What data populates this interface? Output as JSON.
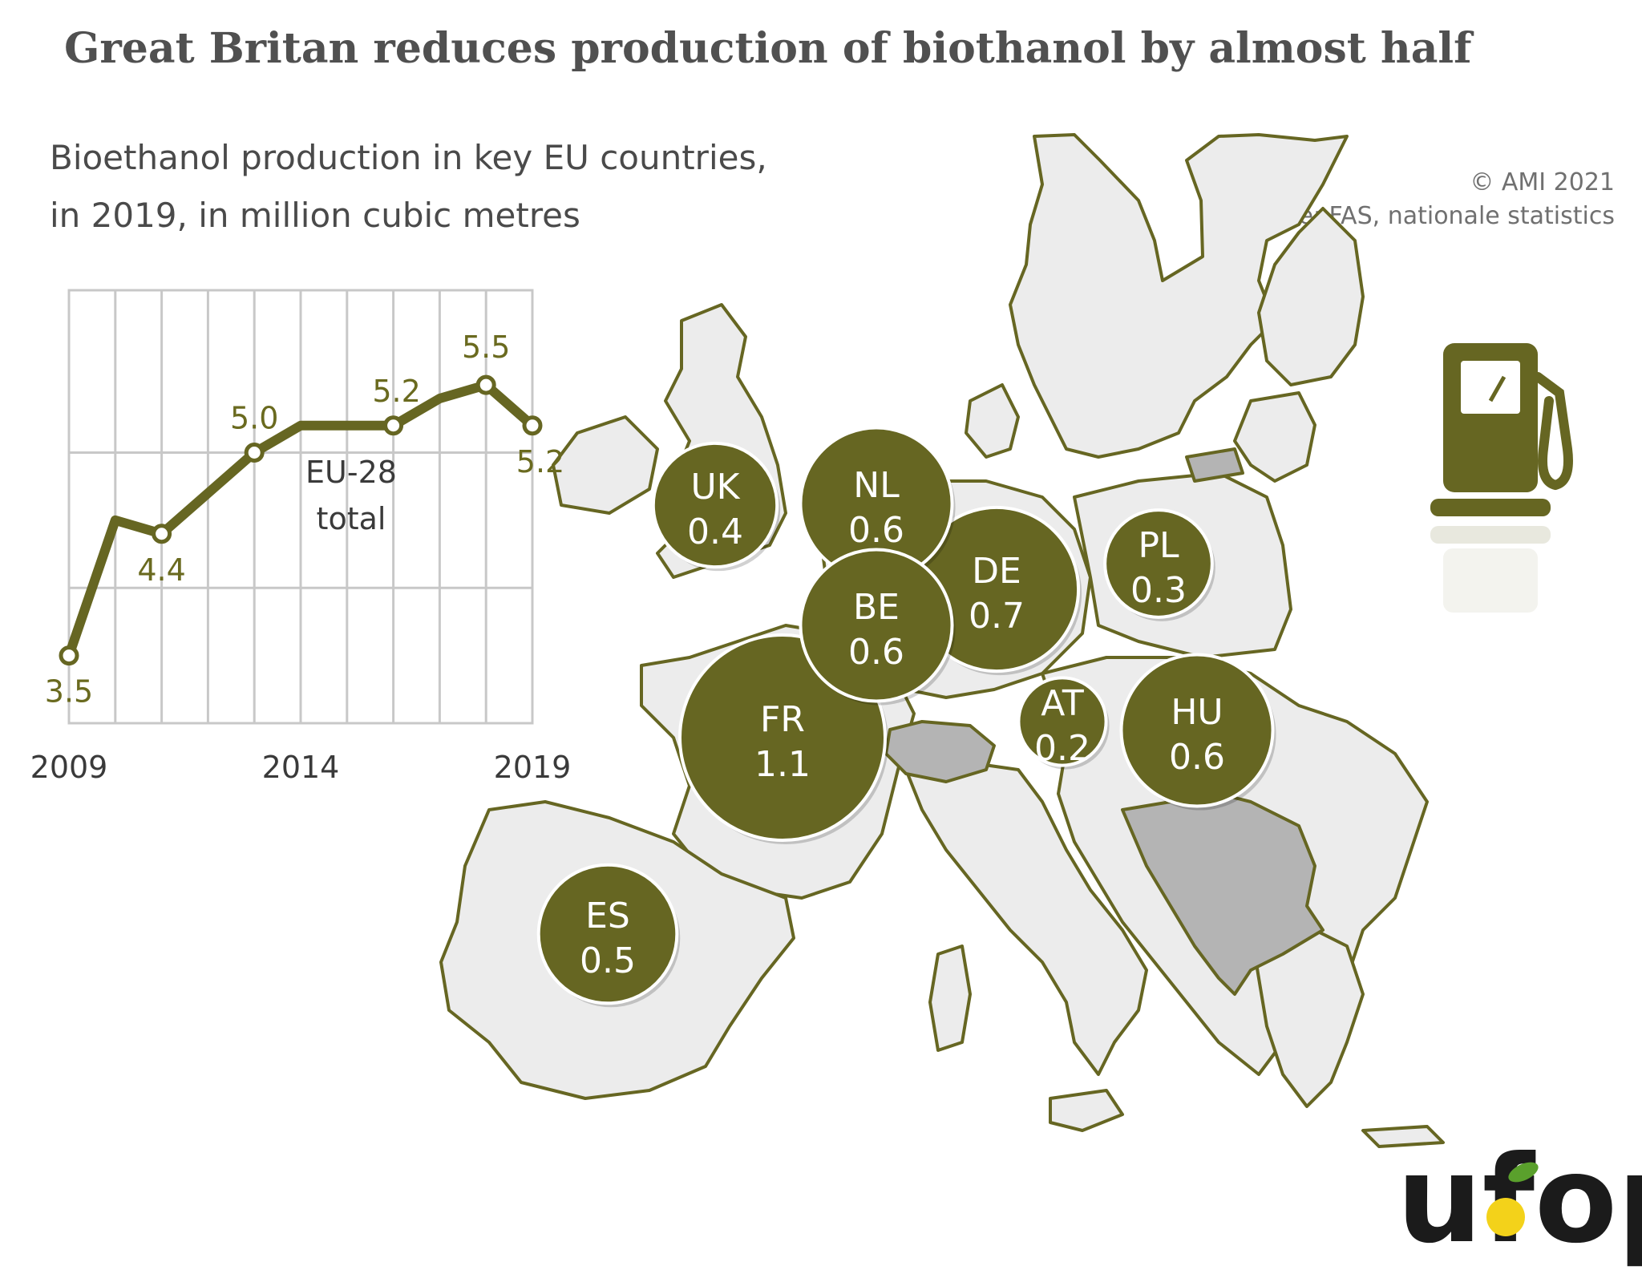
{
  "title": "Great Britan reduces production of biothanol by almost half",
  "subtitle_line1": "Bioethanol production in key EU countries,",
  "subtitle_line2": "in 2019, in million cubic metres",
  "copyright": "© AMI 2021",
  "source": "Source: FAS, nationale statistics",
  "logo_text": "ufop",
  "colors": {
    "accent": "#666622",
    "grid": "#c8c8c8",
    "land": "#ececec",
    "land_dark": "#b4b4b4",
    "text": "#4a4a4a"
  },
  "chart_data": [
    {
      "type": "line",
      "annotation_line1": "EU-28",
      "annotation_line2": "total",
      "x": [
        2009,
        2010,
        2011,
        2012,
        2013,
        2014,
        2015,
        2016,
        2017,
        2018,
        2019
      ],
      "values": [
        3.5,
        4.5,
        4.4,
        4.7,
        5.0,
        5.2,
        5.2,
        5.2,
        5.4,
        5.5,
        5.2
      ],
      "labeled_points": [
        {
          "x": 2009,
          "label": "3.5"
        },
        {
          "x": 2011,
          "label": "4.4"
        },
        {
          "x": 2013,
          "label": "5.0"
        },
        {
          "x": 2016,
          "label": "5.2"
        },
        {
          "x": 2018,
          "label": "5.5"
        },
        {
          "x": 2019,
          "label": "5.2"
        }
      ],
      "xtick_labels": [
        "2009",
        "2014",
        "2019"
      ],
      "ylim": [
        3.0,
        6.2
      ],
      "grid": true
    },
    {
      "type": "bubble-map",
      "items": [
        {
          "code": "UK",
          "value": "0.4",
          "v": 0.4
        },
        {
          "code": "NL",
          "value": "0.6",
          "v": 0.6
        },
        {
          "code": "DE",
          "value": "0.7",
          "v": 0.7
        },
        {
          "code": "BE",
          "value": "0.6",
          "v": 0.6
        },
        {
          "code": "PL",
          "value": "0.3",
          "v": 0.3
        },
        {
          "code": "FR",
          "value": "1.1",
          "v": 1.1
        },
        {
          "code": "AT",
          "value": "0.2",
          "v": 0.2
        },
        {
          "code": "HU",
          "value": "0.6",
          "v": 0.6
        },
        {
          "code": "ES",
          "value": "0.5",
          "v": 0.5
        }
      ]
    }
  ]
}
